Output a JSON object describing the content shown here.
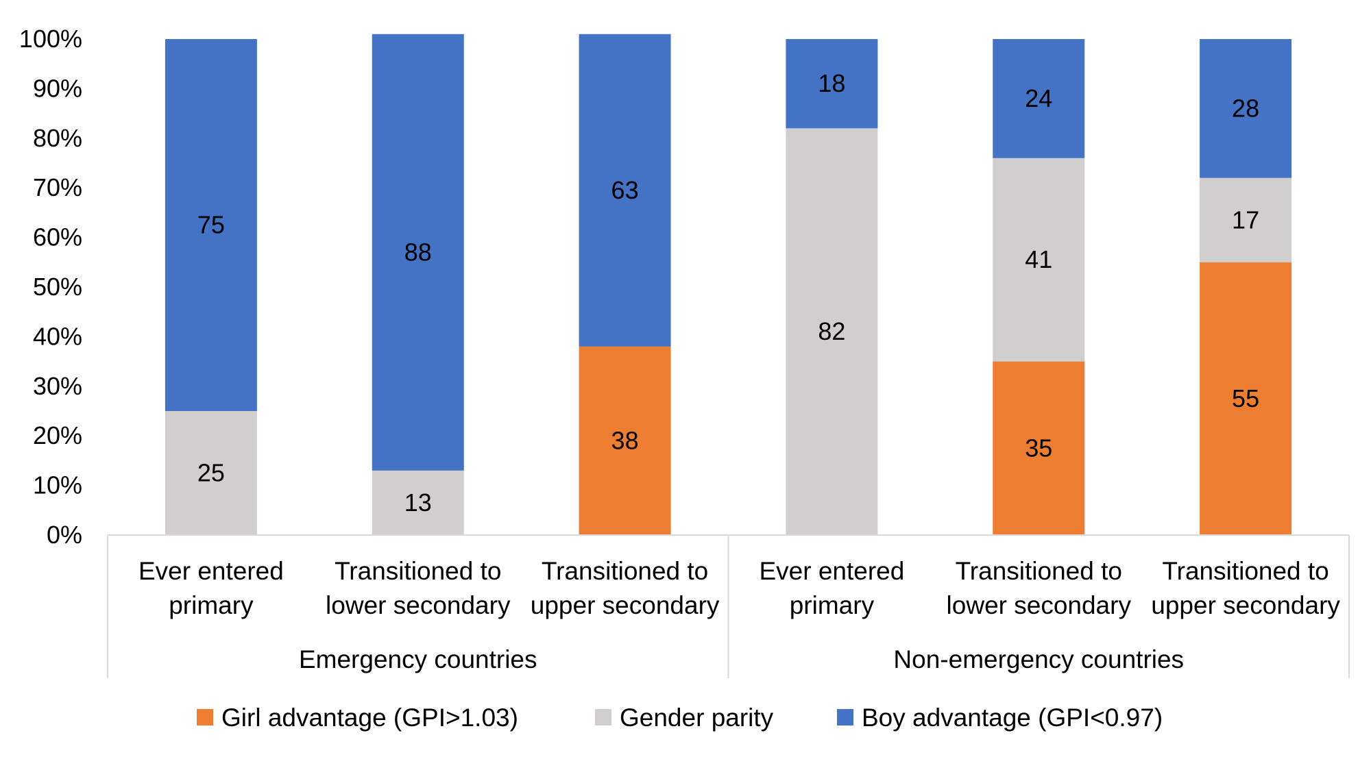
{
  "chart_data": {
    "type": "bar",
    "stacked": true,
    "title": "",
    "xlabel": "",
    "ylabel": "",
    "ylim": [
      0,
      100
    ],
    "y_ticks": [
      "0%",
      "10%",
      "20%",
      "30%",
      "40%",
      "50%",
      "60%",
      "70%",
      "80%",
      "90%",
      "100%"
    ],
    "grid": false,
    "legend_position": "bottom",
    "groups": [
      {
        "name": "Emergency countries",
        "categories": [
          "Ever entered primary",
          "Transitioned to lower secondary",
          "Transitioned to upper secondary"
        ]
      },
      {
        "name": "Non-emergency countries",
        "categories": [
          "Ever entered primary",
          "Transitioned to lower secondary",
          "Transitioned to upper secondary"
        ]
      }
    ],
    "category_lines": [
      [
        "Ever entered",
        "primary"
      ],
      [
        "Transitioned to",
        "lower secondary"
      ],
      [
        "Transitioned to",
        "upper secondary"
      ],
      [
        "Ever entered",
        "primary"
      ],
      [
        "Transitioned to",
        "lower secondary"
      ],
      [
        "Transitioned to",
        "upper secondary"
      ]
    ],
    "series": [
      {
        "name": "Girl advantage (GPI>1.03)",
        "color": "#ED7D31",
        "values": [
          0,
          0,
          38,
          0,
          35,
          55
        ],
        "labels": [
          "",
          "",
          "38",
          "",
          "35",
          "55"
        ]
      },
      {
        "name": "Gender parity",
        "color": "#D0CECE",
        "values": [
          25,
          13,
          0,
          82,
          41,
          17
        ],
        "labels": [
          "25",
          "13",
          "",
          "82",
          "41",
          "17"
        ]
      },
      {
        "name": "Boy advantage (GPI<0.97)",
        "color": "#4472C4",
        "values": [
          75,
          88,
          63,
          18,
          24,
          28
        ],
        "labels": [
          "75",
          "88",
          "63",
          "18",
          "24",
          "28"
        ]
      }
    ]
  }
}
